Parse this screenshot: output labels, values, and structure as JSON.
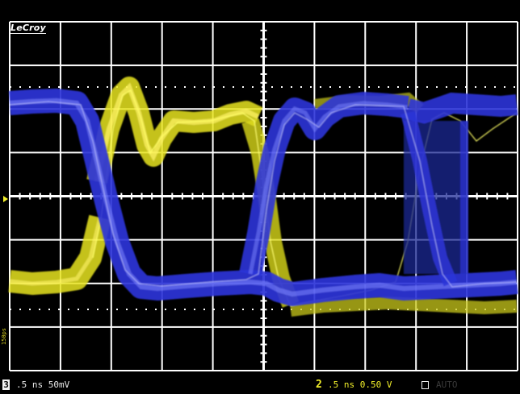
{
  "brand": {
    "logo_text": "LeCroy"
  },
  "waveforms": [
    {
      "trace": "channel-2",
      "color": "#f2ef2a"
    },
    {
      "trace": "channel-3",
      "color": "#2a33e6"
    }
  ],
  "grid": {
    "divisions_x": 10,
    "divisions_y": 8,
    "color": "#ffffff"
  },
  "markers": {
    "trigger_level_color": "#f2ef2a"
  },
  "side_label": "150ps",
  "status_bar": {
    "left_channel_number": "3",
    "left_readout": ".5 ns 50mV",
    "right_channel_number": "2",
    "right_readout": ".5 ns 0.50 V",
    "ghost_label": "AUTO"
  }
}
